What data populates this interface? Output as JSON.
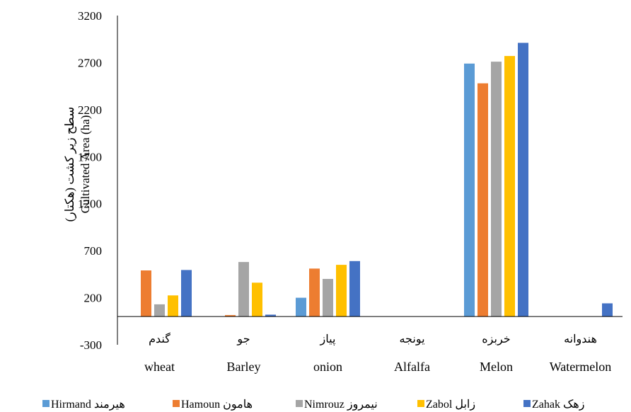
{
  "chart_data": {
    "type": "bar",
    "ylabel_fa": "سطح زیر کشت (هکتار)",
    "ylabel_en": "Cultivated Area (ha)",
    "ylim": [
      -300,
      3200
    ],
    "yticks": [
      -300,
      200,
      700,
      1200,
      1700,
      2200,
      2700,
      3200
    ],
    "grid": false,
    "legend_position": "bottom",
    "categories": [
      {
        "fa": "گندم",
        "en": "wheat"
      },
      {
        "fa": "جو",
        "en": "Barley"
      },
      {
        "fa": "پیاز",
        "en": "onion"
      },
      {
        "fa": "یونجه",
        "en": "Alfalfa"
      },
      {
        "fa": "خربزه",
        "en": "Melon"
      },
      {
        "fa": "هندوانه",
        "en": "Watermelon"
      }
    ],
    "series": [
      {
        "name_en": "Hirmand",
        "name_fa": "هیرمند",
        "color": "#5B9BD5",
        "values": [
          0,
          0,
          200,
          0,
          2690,
          0
        ]
      },
      {
        "name_en": "Hamoun",
        "name_fa": "هامون",
        "color": "#ED7D31",
        "values": [
          490,
          15,
          510,
          0,
          2480,
          0
        ]
      },
      {
        "name_en": "Nimrouz",
        "name_fa": "نیمروز",
        "color": "#A5A5A5",
        "values": [
          130,
          580,
          400,
          0,
          2710,
          0
        ]
      },
      {
        "name_en": "Zabol",
        "name_fa": "زابل",
        "color": "#FFC000",
        "values": [
          225,
          360,
          550,
          0,
          2770,
          0
        ]
      },
      {
        "name_en": "Zahak",
        "name_fa": "زهک",
        "color": "#4472C4",
        "values": [
          495,
          20,
          590,
          0,
          2910,
          140
        ]
      }
    ]
  }
}
